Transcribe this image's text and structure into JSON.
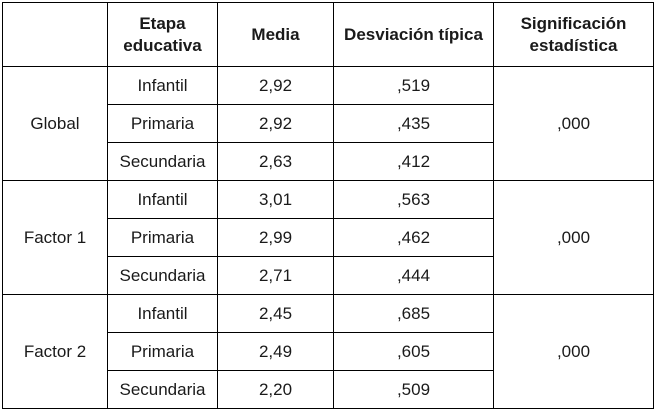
{
  "headers": [
    "Etapa educativa",
    "Media",
    "Desviación típica",
    "Significación estadística"
  ],
  "groups": [
    {
      "label": "Global",
      "significance": ",000",
      "rows": [
        {
          "stage": "Infantil",
          "mean": "2,92",
          "sd": ",519"
        },
        {
          "stage": "Primaria",
          "mean": "2,92",
          "sd": ",435"
        },
        {
          "stage": "Secundaria",
          "mean": "2,63",
          "sd": ",412"
        }
      ]
    },
    {
      "label": "Factor 1",
      "significance": ",000",
      "rows": [
        {
          "stage": "Infantil",
          "mean": "3,01",
          "sd": ",563"
        },
        {
          "stage": "Primaria",
          "mean": "2,99",
          "sd": ",462"
        },
        {
          "stage": "Secundaria",
          "mean": "2,71",
          "sd": ",444"
        }
      ]
    },
    {
      "label": "Factor 2",
      "significance": ",000",
      "rows": [
        {
          "stage": "Infantil",
          "mean": "2,45",
          "sd": ",685"
        },
        {
          "stage": "Primaria",
          "mean": "2,49",
          "sd": ",605"
        },
        {
          "stage": "Secundaria",
          "mean": "2,20",
          "sd": ",509"
        }
      ]
    }
  ]
}
